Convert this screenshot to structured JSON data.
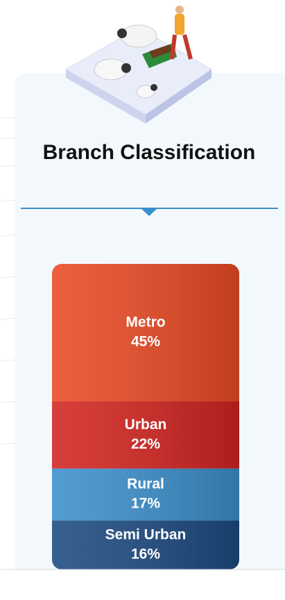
{
  "chart_data": {
    "type": "stacked-bar",
    "title": "Branch Classification",
    "categories": [
      "Metro",
      "Urban",
      "Rural",
      "Semi Urban"
    ],
    "values": [
      45,
      22,
      17,
      16
    ],
    "value_labels": [
      "45%",
      "22%",
      "17%",
      "16%"
    ],
    "colors": [
      "#ea4a24",
      "#d22420",
      "#3b8fcc",
      "#1c4a80"
    ]
  }
}
